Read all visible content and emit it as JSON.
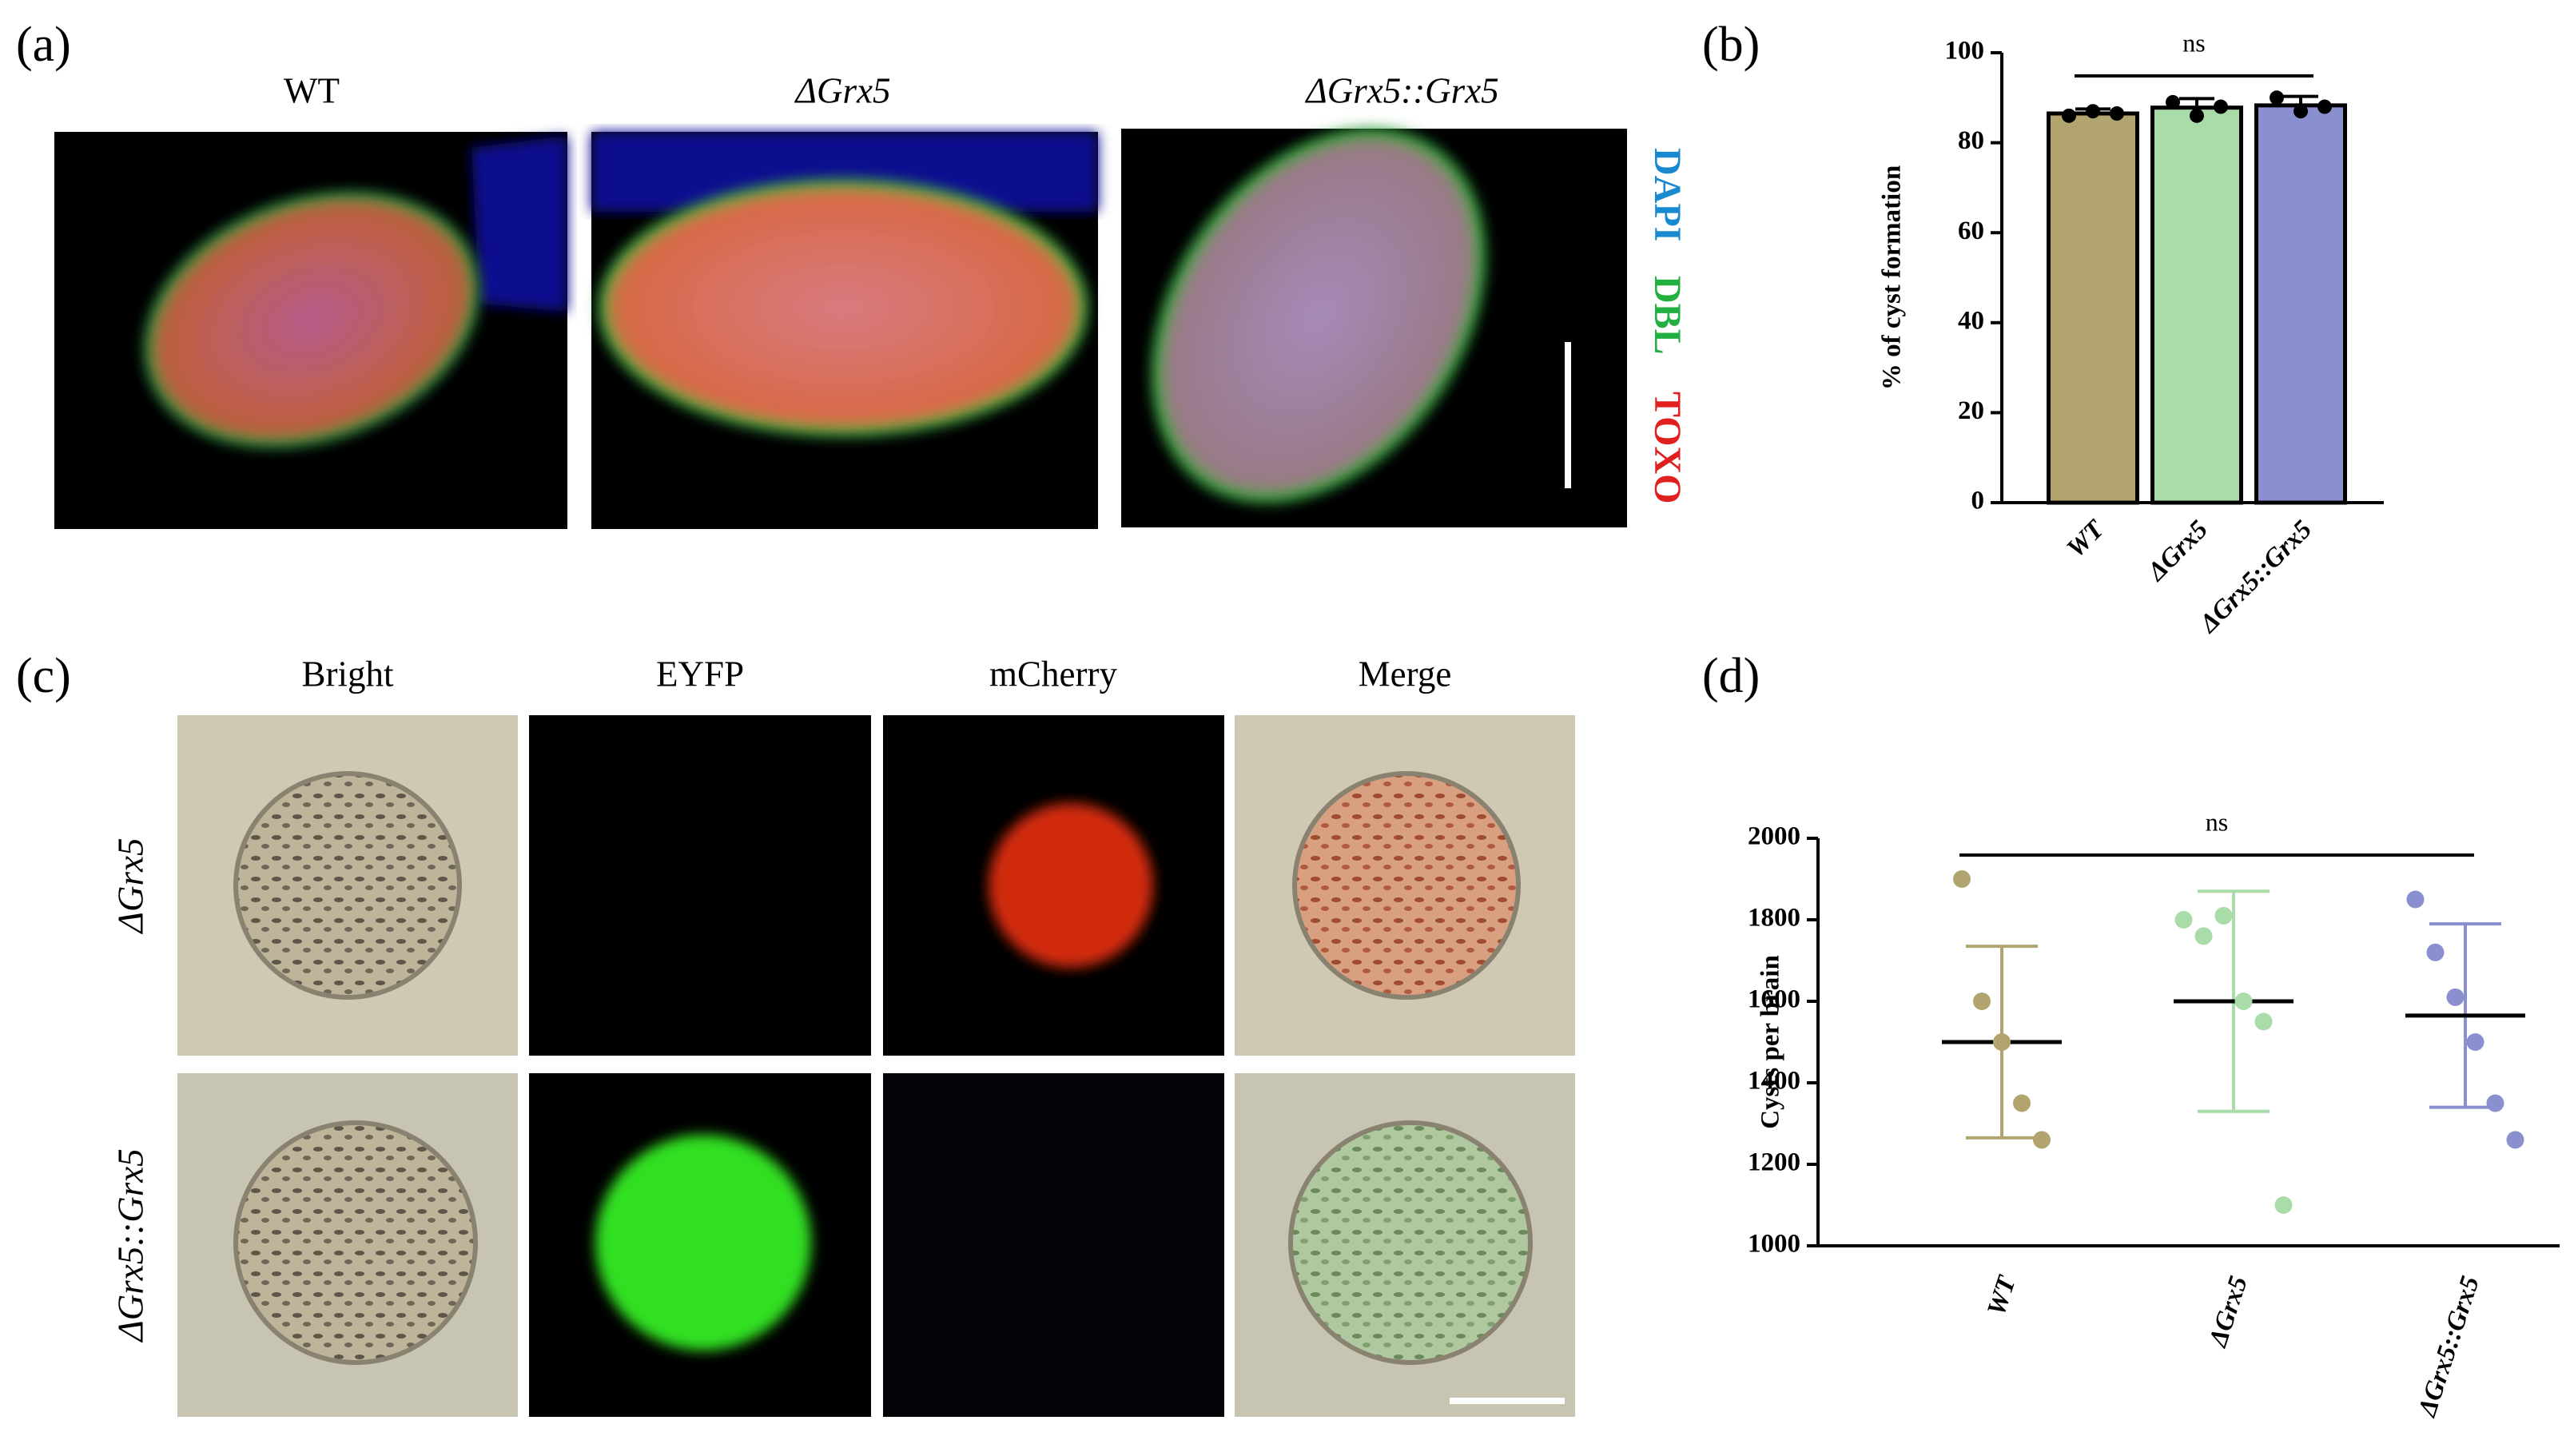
{
  "panels": {
    "a": {
      "label": "(a)",
      "columns": [
        "WT",
        "ΔGrx5",
        "ΔGrx5::Grx5"
      ],
      "stains": [
        "DAPI",
        "DBL",
        "TOXO"
      ]
    },
    "b": {
      "label": "(b)"
    },
    "c": {
      "label": "(c)",
      "columns": [
        "Bright",
        "EYFP",
        "mCherry",
        "Merge"
      ],
      "rows": [
        "ΔGrx5",
        "ΔGrx5::Grx5"
      ]
    },
    "d": {
      "label": "(d)"
    }
  },
  "chart_data": [
    {
      "type": "bar",
      "ylabel": "% of cyst formation",
      "annotation": "ns",
      "categories": [
        "WT",
        "ΔGrx5",
        "ΔGrx5::Grx5"
      ],
      "colors": [
        "#b1a46f",
        "#a9dca9",
        "#8a90cf"
      ],
      "values": [
        86.5,
        87.8,
        88.3
      ],
      "errors": [
        1,
        2,
        2
      ],
      "points": [
        [
          86,
          87,
          86.5
        ],
        [
          89,
          86,
          88
        ],
        [
          90,
          87,
          88
        ]
      ],
      "ylim": [
        0,
        100
      ],
      "yticks": [
        0,
        20,
        40,
        60,
        80,
        100
      ]
    },
    {
      "type": "dot",
      "ylabel": "Cysts per brain",
      "annotation": "ns",
      "categories": [
        "WT",
        "ΔGrx5",
        "ΔGrx5::Grx5"
      ],
      "colors": [
        "#b1a46f",
        "#a9dca9",
        "#8a90cf"
      ],
      "points": [
        [
          1900,
          1600,
          1500,
          1350,
          1260
        ],
        [
          1800,
          1760,
          1810,
          1600,
          1550,
          1100
        ],
        [
          1850,
          1720,
          1610,
          1500,
          1350,
          1260
        ]
      ],
      "means": [
        1500,
        1600,
        1565
      ],
      "sd": [
        235,
        270,
        225
      ],
      "ylim": [
        1000,
        2000
      ],
      "yticks": [
        1000,
        1200,
        1400,
        1600,
        1800,
        2000
      ]
    }
  ]
}
